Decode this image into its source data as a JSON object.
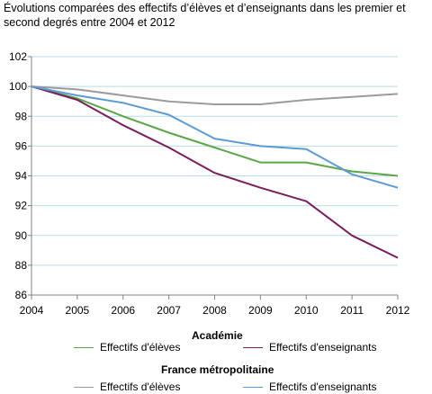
{
  "title": {
    "line1": "Évolutions comparées des effectifs d’élèves et d’enseignants dans les premier et",
    "line2": "second degrés entre 2004 et 2012"
  },
  "legend": {
    "group1": "Académie",
    "group2": "France métropolitaine",
    "eleves": "Effectifs d'élèves",
    "enseignants": "Effectifs d'enseignants"
  },
  "chart_data": {
    "type": "line",
    "title": "Évolutions comparées des effectifs d’élèves et d’enseignants dans les premier et second degrés entre 2004 et 2012",
    "xlabel": "",
    "ylabel": "",
    "x": [
      2004,
      2005,
      2006,
      2007,
      2008,
      2009,
      2010,
      2011,
      2012
    ],
    "ylim": [
      86,
      102
    ],
    "yticks": [
      86,
      88,
      90,
      92,
      94,
      96,
      98,
      100,
      102
    ],
    "grid": "horizontal",
    "legend_position": "bottom",
    "series": [
      {
        "name": "Effectifs d'élèves",
        "group": "Académie",
        "color": "#5aa746",
        "values": [
          100,
          99.2,
          98.0,
          96.9,
          95.9,
          94.9,
          94.9,
          94.3,
          94.0
        ]
      },
      {
        "name": "Effectifs d'enseignants",
        "group": "Académie",
        "color": "#7b1d5e",
        "values": [
          100,
          99.1,
          97.4,
          95.9,
          94.2,
          93.2,
          92.3,
          90.0,
          88.5
        ]
      },
      {
        "name": "Effectifs d'élèves",
        "group": "France métropolitaine",
        "color": "#9b9b9b",
        "values": [
          100,
          99.8,
          99.4,
          99.0,
          98.8,
          98.8,
          99.1,
          99.3,
          99.5
        ]
      },
      {
        "name": "Effectifs d'enseignants",
        "group": "France métropolitaine",
        "color": "#5b9bd5",
        "values": [
          100,
          99.4,
          98.9,
          98.1,
          96.5,
          96.0,
          95.8,
          94.1,
          93.2
        ]
      }
    ],
    "colors": {
      "grid": "#b7dde8",
      "axis": "#808080"
    }
  }
}
